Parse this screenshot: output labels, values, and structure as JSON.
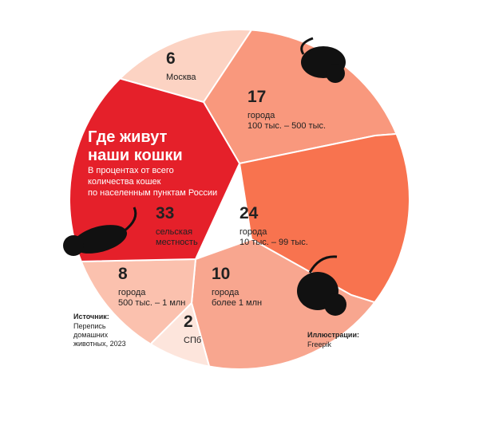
{
  "chart_data": {
    "type": "voronoi",
    "title": [
      "Где живут",
      "наши кошки"
    ],
    "subtitle": [
      "В процентах от всего",
      "количества кошек",
      "по населенным пунктам России"
    ],
    "categories": [
      [
        "Москва"
      ],
      [
        "города",
        "100 тыс. – 500 тыс."
      ],
      [
        "города",
        "10 тыс. – 99 тыс."
      ],
      [
        "города",
        "более 1 млн"
      ],
      [
        "СПб"
      ],
      [
        "города",
        "500 тыс. – 1 млн"
      ],
      [
        "сельская",
        "местность"
      ]
    ],
    "values": [
      6,
      17,
      24,
      10,
      2,
      8,
      33
    ],
    "colors": [
      "#fcd3c3",
      "#f9987d",
      "#f8734f",
      "#f8a68f",
      "#fde5dc",
      "#fbc1ae",
      "#e5202a"
    ],
    "source": {
      "label": "Источник:",
      "lines": [
        "Перепись",
        "домашних",
        "животных, 2023"
      ]
    },
    "credits": {
      "label": "Иллюстрации:",
      "lines": [
        "Freepik"
      ]
    }
  }
}
